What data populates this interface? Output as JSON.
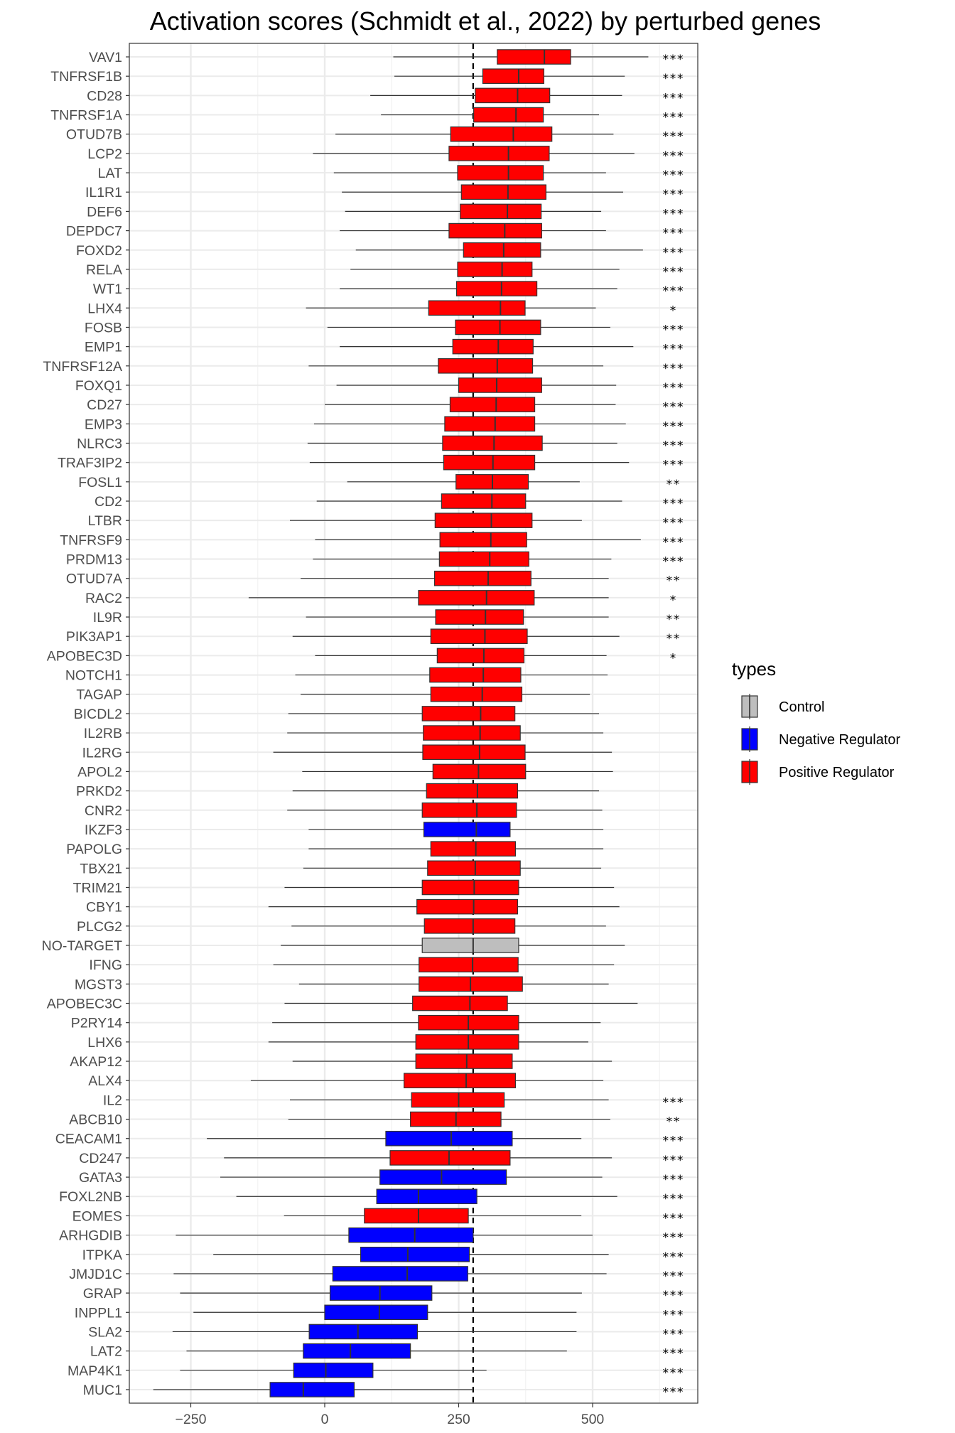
{
  "chart_data": {
    "type": "boxplot",
    "title": "Activation scores (Schmidt et al., 2022) by perturbed genes",
    "xlabel": "",
    "ylabel": "",
    "xlim": [
      -365,
      700
    ],
    "xticks": [
      -250,
      0,
      250,
      500
    ],
    "reference_line": 277,
    "grid": true,
    "legend": {
      "title": "types",
      "position": "right",
      "entries": [
        {
          "label": "Control",
          "color": "#bebebe"
        },
        {
          "label": "Negative Regulator",
          "color": "#0000ff"
        },
        {
          "label": "Positive Regulator",
          "color": "#ff0000"
        }
      ]
    },
    "genes": [
      {
        "gene": "VAV1",
        "type": "Positive Regulator",
        "wlo": 128,
        "q1": 322,
        "med": 410,
        "q3": 459,
        "whi": 604,
        "sig": "***"
      },
      {
        "gene": "TNFRSF1B",
        "type": "Positive Regulator",
        "wlo": 130,
        "q1": 295,
        "med": 362,
        "q3": 409,
        "whi": 560,
        "sig": "***"
      },
      {
        "gene": "CD28",
        "type": "Positive Regulator",
        "wlo": 85,
        "q1": 281,
        "med": 360,
        "q3": 420,
        "whi": 555,
        "sig": "***"
      },
      {
        "gene": "TNFRSF1A",
        "type": "Positive Regulator",
        "wlo": 105,
        "q1": 278,
        "med": 357,
        "q3": 408,
        "whi": 512,
        "sig": "***"
      },
      {
        "gene": "OTUD7B",
        "type": "Positive Regulator",
        "wlo": 20,
        "q1": 235,
        "med": 352,
        "q3": 424,
        "whi": 539,
        "sig": "***"
      },
      {
        "gene": "LCP2",
        "type": "Positive Regulator",
        "wlo": -22,
        "q1": 232,
        "med": 343,
        "q3": 419,
        "whi": 578,
        "sig": "***"
      },
      {
        "gene": "LAT",
        "type": "Positive Regulator",
        "wlo": 17,
        "q1": 248,
        "med": 343,
        "q3": 408,
        "whi": 525,
        "sig": "***"
      },
      {
        "gene": "IL1R1",
        "type": "Positive Regulator",
        "wlo": 32,
        "q1": 255,
        "med": 342,
        "q3": 413,
        "whi": 557,
        "sig": "***"
      },
      {
        "gene": "DEF6",
        "type": "Positive Regulator",
        "wlo": 38,
        "q1": 253,
        "med": 341,
        "q3": 404,
        "whi": 516,
        "sig": "***"
      },
      {
        "gene": "DEPDC7",
        "type": "Positive Regulator",
        "wlo": 28,
        "q1": 232,
        "med": 336,
        "q3": 405,
        "whi": 525,
        "sig": "***"
      },
      {
        "gene": "FOXD2",
        "type": "Positive Regulator",
        "wlo": 58,
        "q1": 259,
        "med": 334,
        "q3": 403,
        "whi": 594,
        "sig": "***"
      },
      {
        "gene": "RELA",
        "type": "Positive Regulator",
        "wlo": 48,
        "q1": 248,
        "med": 331,
        "q3": 387,
        "whi": 550,
        "sig": "***"
      },
      {
        "gene": "WT1",
        "type": "Positive Regulator",
        "wlo": 28,
        "q1": 246,
        "med": 330,
        "q3": 396,
        "whi": 546,
        "sig": "***"
      },
      {
        "gene": "LHX4",
        "type": "Positive Regulator",
        "wlo": -35,
        "q1": 194,
        "med": 328,
        "q3": 374,
        "whi": 506,
        "sig": "*"
      },
      {
        "gene": "FOSB",
        "type": "Positive Regulator",
        "wlo": 5,
        "q1": 244,
        "med": 327,
        "q3": 403,
        "whi": 533,
        "sig": "***"
      },
      {
        "gene": "EMP1",
        "type": "Positive Regulator",
        "wlo": 28,
        "q1": 239,
        "med": 324,
        "q3": 389,
        "whi": 576,
        "sig": "***"
      },
      {
        "gene": "TNFRSF12A",
        "type": "Positive Regulator",
        "wlo": -30,
        "q1": 212,
        "med": 322,
        "q3": 388,
        "whi": 520,
        "sig": "***"
      },
      {
        "gene": "FOXQ1",
        "type": "Positive Regulator",
        "wlo": 22,
        "q1": 250,
        "med": 321,
        "q3": 405,
        "whi": 544,
        "sig": "***"
      },
      {
        "gene": "CD27",
        "type": "Positive Regulator",
        "wlo": 0,
        "q1": 234,
        "med": 320,
        "q3": 392,
        "whi": 543,
        "sig": "***"
      },
      {
        "gene": "EMP3",
        "type": "Positive Regulator",
        "wlo": -20,
        "q1": 224,
        "med": 318,
        "q3": 392,
        "whi": 562,
        "sig": "***"
      },
      {
        "gene": "NLRC3",
        "type": "Positive Regulator",
        "wlo": -32,
        "q1": 220,
        "med": 316,
        "q3": 406,
        "whi": 546,
        "sig": "***"
      },
      {
        "gene": "TRAF3IP2",
        "type": "Positive Regulator",
        "wlo": -28,
        "q1": 222,
        "med": 314,
        "q3": 392,
        "whi": 568,
        "sig": "***"
      },
      {
        "gene": "FOSL1",
        "type": "Positive Regulator",
        "wlo": 42,
        "q1": 245,
        "med": 313,
        "q3": 380,
        "whi": 476,
        "sig": "**"
      },
      {
        "gene": "CD2",
        "type": "Positive Regulator",
        "wlo": -15,
        "q1": 218,
        "med": 312,
        "q3": 375,
        "whi": 555,
        "sig": "***"
      },
      {
        "gene": "LTBR",
        "type": "Positive Regulator",
        "wlo": -65,
        "q1": 206,
        "med": 311,
        "q3": 387,
        "whi": 480,
        "sig": "***"
      },
      {
        "gene": "TNFRSF9",
        "type": "Positive Regulator",
        "wlo": -18,
        "q1": 215,
        "med": 310,
        "q3": 377,
        "whi": 590,
        "sig": "***"
      },
      {
        "gene": "PRDM13",
        "type": "Positive Regulator",
        "wlo": -22,
        "q1": 214,
        "med": 308,
        "q3": 381,
        "whi": 535,
        "sig": "***"
      },
      {
        "gene": "OTUD7A",
        "type": "Positive Regulator",
        "wlo": -45,
        "q1": 205,
        "med": 305,
        "q3": 385,
        "whi": 530,
        "sig": "**"
      },
      {
        "gene": "RAC2",
        "type": "Positive Regulator",
        "wlo": -142,
        "q1": 175,
        "med": 302,
        "q3": 391,
        "whi": 530,
        "sig": "*"
      },
      {
        "gene": "IL9R",
        "type": "Positive Regulator",
        "wlo": -35,
        "q1": 207,
        "med": 300,
        "q3": 371,
        "whi": 530,
        "sig": "**"
      },
      {
        "gene": "PIK3AP1",
        "type": "Positive Regulator",
        "wlo": -60,
        "q1": 198,
        "med": 299,
        "q3": 378,
        "whi": 550,
        "sig": "**"
      },
      {
        "gene": "APOBEC3D",
        "type": "Positive Regulator",
        "wlo": -18,
        "q1": 210,
        "med": 297,
        "q3": 372,
        "whi": 526,
        "sig": "*"
      },
      {
        "gene": "NOTCH1",
        "type": "Positive Regulator",
        "wlo": -55,
        "q1": 196,
        "med": 296,
        "q3": 366,
        "whi": 528,
        "sig": ""
      },
      {
        "gene": "TAGAP",
        "type": "Positive Regulator",
        "wlo": -45,
        "q1": 198,
        "med": 294,
        "q3": 368,
        "whi": 495,
        "sig": ""
      },
      {
        "gene": "BICDL2",
        "type": "Positive Regulator",
        "wlo": -68,
        "q1": 182,
        "med": 291,
        "q3": 355,
        "whi": 512,
        "sig": ""
      },
      {
        "gene": "IL2RB",
        "type": "Positive Regulator",
        "wlo": -70,
        "q1": 184,
        "med": 290,
        "q3": 365,
        "whi": 520,
        "sig": ""
      },
      {
        "gene": "IL2RG",
        "type": "Positive Regulator",
        "wlo": -96,
        "q1": 183,
        "med": 289,
        "q3": 374,
        "whi": 536,
        "sig": ""
      },
      {
        "gene": "APOL2",
        "type": "Positive Regulator",
        "wlo": -42,
        "q1": 202,
        "med": 287,
        "q3": 375,
        "whi": 538,
        "sig": ""
      },
      {
        "gene": "PRKD2",
        "type": "Positive Regulator",
        "wlo": -60,
        "q1": 190,
        "med": 285,
        "q3": 360,
        "whi": 512,
        "sig": ""
      },
      {
        "gene": "CNR2",
        "type": "Positive Regulator",
        "wlo": -70,
        "q1": 182,
        "med": 284,
        "q3": 358,
        "whi": 518,
        "sig": ""
      },
      {
        "gene": "IKZF3",
        "type": "Negative Regulator",
        "wlo": -30,
        "q1": 185,
        "med": 283,
        "q3": 346,
        "whi": 520,
        "sig": ""
      },
      {
        "gene": "PAPOLG",
        "type": "Positive Regulator",
        "wlo": -30,
        "q1": 198,
        "med": 282,
        "q3": 356,
        "whi": 520,
        "sig": ""
      },
      {
        "gene": "TBX21",
        "type": "Positive Regulator",
        "wlo": -40,
        "q1": 192,
        "med": 281,
        "q3": 365,
        "whi": 516,
        "sig": ""
      },
      {
        "gene": "TRIM21",
        "type": "Positive Regulator",
        "wlo": -75,
        "q1": 182,
        "med": 279,
        "q3": 362,
        "whi": 540,
        "sig": ""
      },
      {
        "gene": "CBY1",
        "type": "Positive Regulator",
        "wlo": -105,
        "q1": 172,
        "med": 278,
        "q3": 360,
        "whi": 550,
        "sig": ""
      },
      {
        "gene": "PLCG2",
        "type": "Positive Regulator",
        "wlo": -62,
        "q1": 186,
        "med": 277,
        "q3": 355,
        "whi": 525,
        "sig": ""
      },
      {
        "gene": "NO-TARGET",
        "type": "Control",
        "wlo": -82,
        "q1": 182,
        "med": 277,
        "q3": 362,
        "whi": 560,
        "sig": ""
      },
      {
        "gene": "IFNG",
        "type": "Positive Regulator",
        "wlo": -96,
        "q1": 176,
        "med": 276,
        "q3": 361,
        "whi": 540,
        "sig": ""
      },
      {
        "gene": "MGST3",
        "type": "Positive Regulator",
        "wlo": -48,
        "q1": 176,
        "med": 272,
        "q3": 369,
        "whi": 530,
        "sig": ""
      },
      {
        "gene": "APOBEC3C",
        "type": "Positive Regulator",
        "wlo": -75,
        "q1": 164,
        "med": 271,
        "q3": 341,
        "whi": 584,
        "sig": ""
      },
      {
        "gene": "P2RY14",
        "type": "Positive Regulator",
        "wlo": -98,
        "q1": 175,
        "med": 268,
        "q3": 362,
        "whi": 515,
        "sig": ""
      },
      {
        "gene": "LHX6",
        "type": "Positive Regulator",
        "wlo": -105,
        "q1": 170,
        "med": 268,
        "q3": 362,
        "whi": 492,
        "sig": ""
      },
      {
        "gene": "AKAP12",
        "type": "Positive Regulator",
        "wlo": -60,
        "q1": 170,
        "med": 265,
        "q3": 350,
        "whi": 536,
        "sig": ""
      },
      {
        "gene": "ALX4",
        "type": "Positive Regulator",
        "wlo": -138,
        "q1": 148,
        "med": 264,
        "q3": 356,
        "whi": 520,
        "sig": ""
      },
      {
        "gene": "IL2",
        "type": "Positive Regulator",
        "wlo": -65,
        "q1": 162,
        "med": 250,
        "q3": 335,
        "whi": 530,
        "sig": "***"
      },
      {
        "gene": "ABCB10",
        "type": "Positive Regulator",
        "wlo": -68,
        "q1": 160,
        "med": 245,
        "q3": 329,
        "whi": 533,
        "sig": "**"
      },
      {
        "gene": "CEACAM1",
        "type": "Negative Regulator",
        "wlo": -220,
        "q1": 114,
        "med": 236,
        "q3": 350,
        "whi": 479,
        "sig": "***"
      },
      {
        "gene": "CD247",
        "type": "Positive Regulator",
        "wlo": -188,
        "q1": 122,
        "med": 232,
        "q3": 346,
        "whi": 536,
        "sig": "***"
      },
      {
        "gene": "GATA3",
        "type": "Negative Regulator",
        "wlo": -195,
        "q1": 103,
        "med": 218,
        "q3": 339,
        "whi": 518,
        "sig": "***"
      },
      {
        "gene": "FOXL2NB",
        "type": "Negative Regulator",
        "wlo": -165,
        "q1": 97,
        "med": 175,
        "q3": 284,
        "whi": 546,
        "sig": "***"
      },
      {
        "gene": "EOMES",
        "type": "Positive Regulator",
        "wlo": -76,
        "q1": 74,
        "med": 175,
        "q3": 268,
        "whi": 479,
        "sig": "***"
      },
      {
        "gene": "ARHGDIB",
        "type": "Negative Regulator",
        "wlo": -278,
        "q1": 45,
        "med": 168,
        "q3": 277,
        "whi": 500,
        "sig": "***"
      },
      {
        "gene": "ITPKA",
        "type": "Negative Regulator",
        "wlo": -208,
        "q1": 67,
        "med": 155,
        "q3": 270,
        "whi": 530,
        "sig": "***"
      },
      {
        "gene": "JMJD1C",
        "type": "Negative Regulator",
        "wlo": -282,
        "q1": 15,
        "med": 154,
        "q3": 267,
        "whi": 526,
        "sig": "***"
      },
      {
        "gene": "GRAP",
        "type": "Negative Regulator",
        "wlo": -270,
        "q1": 10,
        "med": 103,
        "q3": 200,
        "whi": 480,
        "sig": "***"
      },
      {
        "gene": "INPPL1",
        "type": "Negative Regulator",
        "wlo": -245,
        "q1": 0,
        "med": 102,
        "q3": 192,
        "whi": 470,
        "sig": "***"
      },
      {
        "gene": "SLA2",
        "type": "Negative Regulator",
        "wlo": -284,
        "q1": -29,
        "med": 62,
        "q3": 173,
        "whi": 470,
        "sig": "***"
      },
      {
        "gene": "LAT2",
        "type": "Negative Regulator",
        "wlo": -258,
        "q1": -40,
        "med": 48,
        "q3": 160,
        "whi": 452,
        "sig": "***"
      },
      {
        "gene": "MAP4K1",
        "type": "Negative Regulator",
        "wlo": -270,
        "q1": -58,
        "med": 2,
        "q3": 90,
        "whi": 302,
        "sig": "***"
      },
      {
        "gene": "MUC1",
        "type": "Negative Regulator",
        "wlo": -320,
        "q1": -102,
        "med": -40,
        "q3": 55,
        "whi": 275,
        "sig": "***"
      }
    ]
  }
}
